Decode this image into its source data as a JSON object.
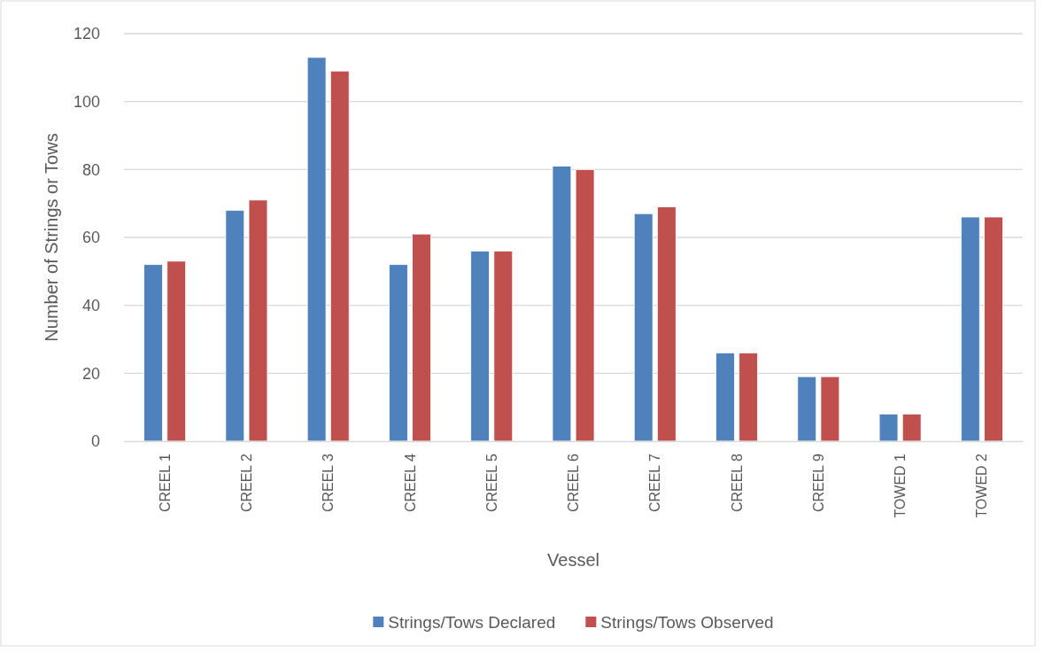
{
  "chart_data": {
    "type": "bar",
    "xlabel": "Vessel",
    "ylabel": "Number of Strings or Tows",
    "categories": [
      "CREEL 1",
      "CREEL 2",
      "CREEL 3",
      "CREEL 4",
      "CREEL 5",
      "CREEL 6",
      "CREEL 7",
      "CREEL 8",
      "CREEL 9",
      "TOWED 1",
      "TOWED 2"
    ],
    "series": [
      {
        "name": "Strings/Tows Declared",
        "color": "#4f81bd",
        "values": [
          52,
          68,
          113,
          52,
          56,
          81,
          67,
          26,
          19,
          8,
          66
        ]
      },
      {
        "name": "Strings/Tows Observed",
        "color": "#c0504d",
        "values": [
          53,
          71,
          109,
          61,
          56,
          80,
          69,
          26,
          19,
          8,
          66
        ]
      }
    ],
    "ylim": [
      0,
      120
    ],
    "yticks": [
      0,
      20,
      40,
      60,
      80,
      100,
      120
    ],
    "grid": "y",
    "legend": "bottom"
  }
}
